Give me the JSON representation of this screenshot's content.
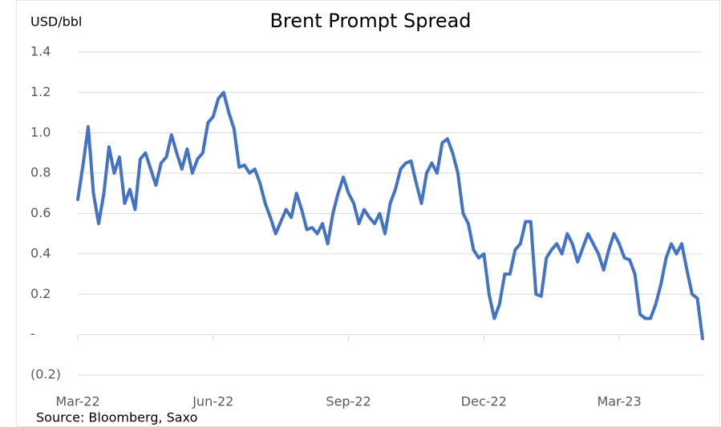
{
  "chart_data": {
    "type": "line",
    "title": "Brent Prompt Spread",
    "y_label": "USD/bbl",
    "source": "Source: Bloomberg, Saxo",
    "categories": [
      "Mar-22",
      null,
      null,
      null,
      null,
      null,
      null,
      null,
      null,
      null,
      null,
      null,
      null,
      null,
      null,
      null,
      null,
      null,
      null,
      null,
      null,
      null,
      null,
      null,
      null,
      null,
      "Jun-22",
      null,
      null,
      null,
      null,
      null,
      null,
      null,
      null,
      null,
      null,
      null,
      null,
      null,
      null,
      null,
      null,
      null,
      null,
      null,
      null,
      null,
      null,
      null,
      null,
      null,
      "Sep-22",
      null,
      null,
      null,
      null,
      null,
      null,
      null,
      null,
      null,
      null,
      null,
      null,
      null,
      null,
      null,
      null,
      null,
      null,
      null,
      null,
      null,
      null,
      null,
      null,
      null,
      "Dec-22",
      null,
      null,
      null,
      null,
      null,
      null,
      null,
      null,
      null,
      null,
      null,
      null,
      null,
      null,
      null,
      null,
      null,
      null,
      null,
      null,
      null,
      null,
      null,
      null,
      null,
      "Mar-23",
      null,
      null,
      null,
      null,
      null,
      null,
      null,
      null,
      null,
      null,
      null,
      null,
      null,
      null,
      null,
      null
    ],
    "series": [
      {
        "name": "Brent Prompt Spread",
        "color": "#4472c4",
        "values": [
          0.67,
          0.84,
          1.03,
          0.7,
          0.55,
          0.7,
          0.93,
          0.8,
          0.88,
          0.65,
          0.72,
          0.62,
          0.87,
          0.9,
          0.82,
          0.74,
          0.85,
          0.88,
          0.99,
          0.9,
          0.82,
          0.92,
          0.8,
          0.87,
          0.9,
          1.05,
          1.08,
          1.17,
          1.2,
          1.1,
          1.02,
          0.83,
          0.84,
          0.8,
          0.82,
          0.75,
          0.65,
          0.58,
          0.5,
          0.56,
          0.62,
          0.58,
          0.7,
          0.62,
          0.52,
          0.53,
          0.5,
          0.55,
          0.45,
          0.6,
          0.7,
          0.78,
          0.7,
          0.65,
          0.55,
          0.62,
          0.58,
          0.55,
          0.6,
          0.5,
          0.65,
          0.72,
          0.82,
          0.85,
          0.86,
          0.75,
          0.65,
          0.8,
          0.85,
          0.8,
          0.95,
          0.97,
          0.9,
          0.8,
          0.6,
          0.55,
          0.42,
          0.38,
          0.4,
          0.2,
          0.08,
          0.15,
          0.3,
          0.3,
          0.42,
          0.45,
          0.56,
          0.56,
          0.2,
          0.19,
          0.38,
          0.42,
          0.45,
          0.4,
          0.5,
          0.45,
          0.36,
          0.43,
          0.5,
          0.45,
          0.4,
          0.32,
          0.42,
          0.5,
          0.45,
          0.38,
          0.37,
          0.3,
          0.1,
          0.08,
          0.08,
          0.15,
          0.25,
          0.38,
          0.45,
          0.4,
          0.45,
          0.32,
          0.2,
          0.18,
          -0.02
        ]
      }
    ],
    "ylim": [
      -0.2,
      1.4
    ],
    "yticks": [
      {
        "value": -0.2,
        "label": "(0.2)"
      },
      {
        "value": 0,
        "label": "-"
      },
      0.2,
      0.4,
      0.6,
      0.8,
      {
        "value": 1,
        "label": "1.0"
      },
      1.2,
      1.4
    ],
    "grid": true
  }
}
